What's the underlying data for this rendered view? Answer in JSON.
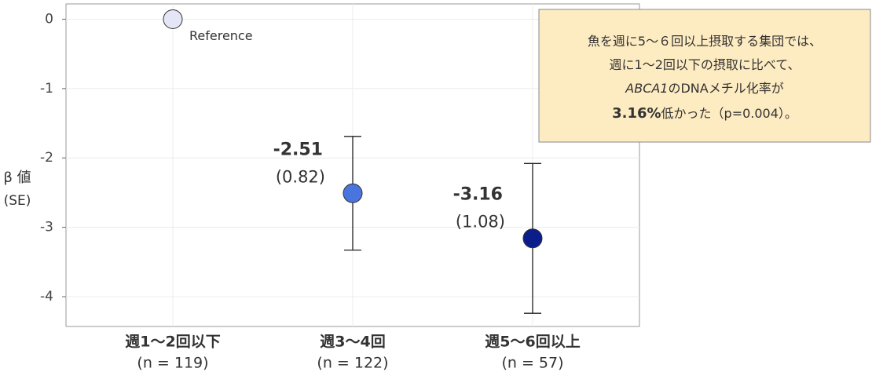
{
  "chart_data": {
    "type": "errorbar",
    "categories": [
      "週1〜2回以下",
      "週3〜4回",
      "週5〜6回以上"
    ],
    "category_notes": [
      "(n = 119)",
      "(n = 122)",
      "(n = 57)"
    ],
    "values": [
      0,
      -2.51,
      -3.16
    ],
    "errors": [
      null,
      0.82,
      1.08
    ],
    "error_labels": [
      null,
      "(0.82)",
      "(1.08)"
    ],
    "colors": [
      "#e4e6f7",
      "#4a74de",
      "#0a1d8a"
    ],
    "ylabel": [
      "β 値",
      "(SE)"
    ],
    "ylim": [
      -4.43,
      0.22
    ],
    "yticks": [
      0,
      -1,
      -2,
      -3,
      -4
    ],
    "grid": true,
    "annotations": [
      {
        "text": "Reference",
        "point": 0
      }
    ],
    "callout": {
      "lines": [
        [
          "魚を週に5〜６回以上摂取する集団では、"
        ],
        [
          "週に1〜2回以下の摂取に比べて、"
        ],
        [
          "ABCA1",
          "のDNAメチル化率が"
        ],
        [
          "3.16%",
          "低かった（p=0.004）。"
        ]
      ]
    }
  }
}
